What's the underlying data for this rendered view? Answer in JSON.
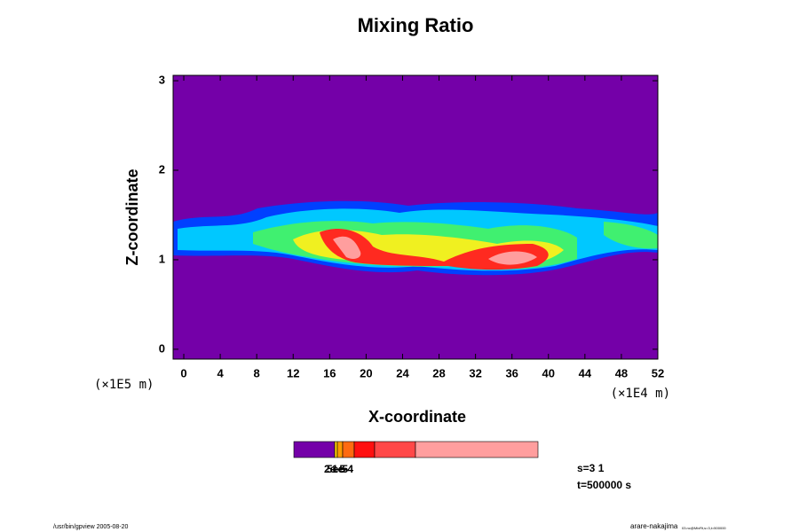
{
  "chart_data": {
    "type": "contour",
    "title": "Mixing Ratio",
    "xlabel": "X-coordinate",
    "ylabel": "Z-coordinate",
    "x_unit": "(×1E4 m)",
    "y_unit": "(×1E5 m)",
    "xlim": [
      -1.17,
      52
    ],
    "ylim": [
      -0.11,
      3.06
    ],
    "xticks": [
      0,
      4,
      8,
      12,
      16,
      20,
      24,
      28,
      32,
      36,
      40,
      44,
      48,
      52
    ],
    "yticks": [
      0,
      1,
      2,
      3
    ],
    "background_color": "#7400a8",
    "colorbar": {
      "colors": [
        "#7400a8",
        "#ffd000",
        "#ff9a00",
        "#ff6a10",
        "#ff1010",
        "#ff4848",
        "#ff9e9e"
      ],
      "labels": [
        "2e-5",
        "5e-5",
        "1e-4"
      ]
    },
    "notes": [
      "s=3 1",
      "t=500000 s"
    ],
    "footer_left": "/usr/bin/gpview 2005-08-20",
    "footer_right": "arare-nakajima",
    "footer_right_small": "03.nc@MixRt,s=3,t=500000"
  }
}
